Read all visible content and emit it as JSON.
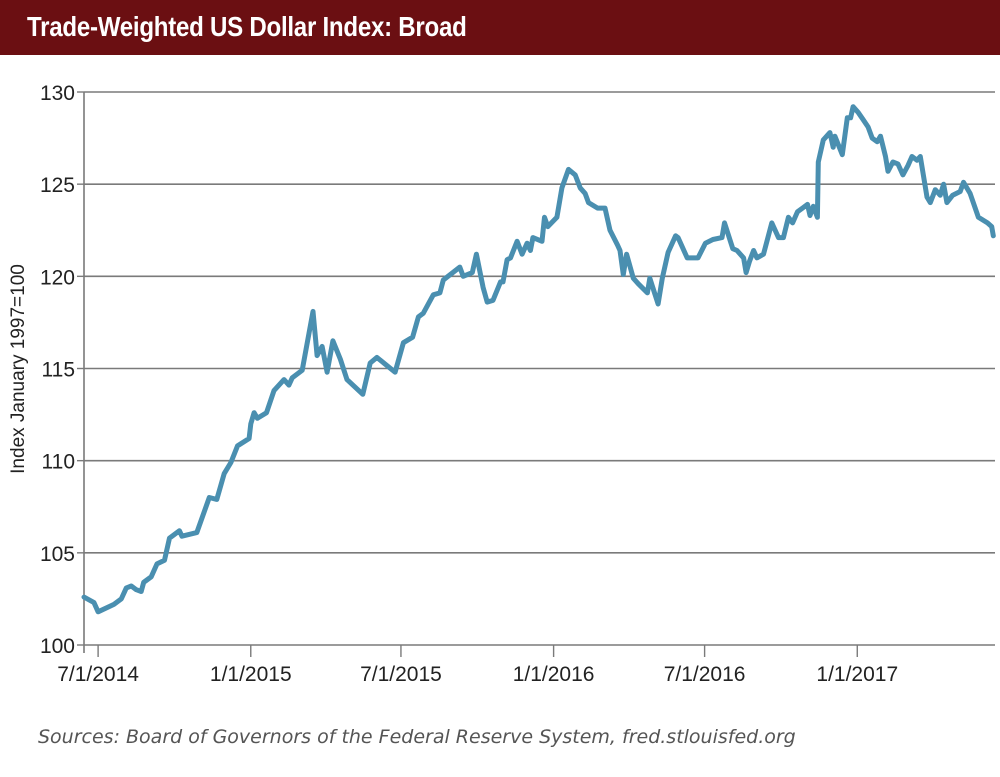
{
  "chart_data": {
    "type": "line",
    "title": "Trade-Weighted US Dollar Index: Broad",
    "xlabel": "",
    "ylabel": "Index January 1997=100",
    "source": "Sources: Board of Governors of the Federal Reserve System, fred.stlouisfed.org",
    "ylim": [
      100,
      130
    ],
    "yticks": [
      100,
      105,
      110,
      115,
      120,
      125,
      130
    ],
    "ytick_labels": [
      "100",
      "105",
      "110",
      "115",
      "120",
      "125",
      "130"
    ],
    "xlim": [
      "2014-06-14",
      "2017-06-16"
    ],
    "xticks": [
      "2014-07-01",
      "2015-01-01",
      "2015-07-01",
      "2016-01-01",
      "2016-07-01",
      "2017-01-01"
    ],
    "xtick_labels": [
      "7/1/2014",
      "1/1/2015",
      "7/1/2015",
      "1/1/2016",
      "7/1/2016",
      "1/1/2017"
    ],
    "grid": "horizontal",
    "legend": "none",
    "colors": {
      "line": "#4a8fb0",
      "title_bar": "#6b0f12",
      "grid": "#7a7a7a"
    },
    "series": [
      {
        "points": [
          [
            "2014-06-14",
            102.6
          ],
          [
            "2014-06-26",
            102.3
          ],
          [
            "2014-07-01",
            101.8
          ],
          [
            "2014-07-20",
            102.2
          ],
          [
            "2014-07-29",
            102.5
          ],
          [
            "2014-08-04",
            103.1
          ],
          [
            "2014-08-10",
            103.2
          ],
          [
            "2014-08-16",
            103.0
          ],
          [
            "2014-08-22",
            102.9
          ],
          [
            "2014-08-25",
            103.4
          ],
          [
            "2014-09-03",
            103.7
          ],
          [
            "2014-09-10",
            104.4
          ],
          [
            "2014-09-19",
            104.6
          ],
          [
            "2014-09-25",
            105.8
          ],
          [
            "2014-10-07",
            106.2
          ],
          [
            "2014-10-10",
            105.9
          ],
          [
            "2014-10-28",
            106.1
          ],
          [
            "2014-11-12",
            108.0
          ],
          [
            "2014-11-21",
            107.9
          ],
          [
            "2014-11-30",
            109.3
          ],
          [
            "2014-12-08",
            109.9
          ],
          [
            "2014-12-16",
            110.8
          ],
          [
            "2014-12-30",
            111.2
          ],
          [
            "2015-01-01",
            112.0
          ],
          [
            "2015-01-05",
            112.6
          ],
          [
            "2015-01-09",
            112.3
          ],
          [
            "2015-01-20",
            112.6
          ],
          [
            "2015-01-29",
            113.8
          ],
          [
            "2015-02-10",
            114.4
          ],
          [
            "2015-02-16",
            114.1
          ],
          [
            "2015-02-20",
            114.5
          ],
          [
            "2015-03-04",
            114.9
          ],
          [
            "2015-03-17",
            118.1
          ],
          [
            "2015-03-22",
            115.7
          ],
          [
            "2015-03-28",
            116.2
          ],
          [
            "2015-04-03",
            114.8
          ],
          [
            "2015-04-10",
            116.5
          ],
          [
            "2015-04-19",
            115.5
          ],
          [
            "2015-04-27",
            114.4
          ],
          [
            "2015-05-16",
            113.6
          ],
          [
            "2015-05-25",
            115.3
          ],
          [
            "2015-06-02",
            115.6
          ],
          [
            "2015-06-24",
            114.8
          ],
          [
            "2015-07-04",
            116.4
          ],
          [
            "2015-07-15",
            116.7
          ],
          [
            "2015-07-22",
            117.8
          ],
          [
            "2015-07-28",
            118.0
          ],
          [
            "2015-08-09",
            119.0
          ],
          [
            "2015-08-17",
            119.1
          ],
          [
            "2015-08-21",
            119.8
          ],
          [
            "2015-09-10",
            120.5
          ],
          [
            "2015-09-14",
            120.0
          ],
          [
            "2015-09-25",
            120.2
          ],
          [
            "2015-09-30",
            121.2
          ],
          [
            "2015-10-08",
            119.4
          ],
          [
            "2015-10-13",
            118.6
          ],
          [
            "2015-10-20",
            118.7
          ],
          [
            "2015-10-29",
            119.7
          ],
          [
            "2015-11-01",
            119.7
          ],
          [
            "2015-11-06",
            120.9
          ],
          [
            "2015-11-10",
            121.0
          ],
          [
            "2015-11-18",
            121.9
          ],
          [
            "2015-11-24",
            121.2
          ],
          [
            "2015-11-30",
            121.8
          ],
          [
            "2015-12-04",
            121.4
          ],
          [
            "2015-12-07",
            122.1
          ],
          [
            "2015-12-18",
            121.9
          ],
          [
            "2015-12-21",
            123.2
          ],
          [
            "2015-12-25",
            122.7
          ],
          [
            "2016-01-05",
            123.2
          ],
          [
            "2016-01-11",
            124.8
          ],
          [
            "2016-01-19",
            125.8
          ],
          [
            "2016-01-27",
            125.5
          ],
          [
            "2016-02-02",
            124.8
          ],
          [
            "2016-02-08",
            124.5
          ],
          [
            "2016-02-12",
            124.0
          ],
          [
            "2016-02-23",
            123.7
          ],
          [
            "2016-03-03",
            123.7
          ],
          [
            "2016-03-09",
            122.5
          ],
          [
            "2016-03-18",
            121.7
          ],
          [
            "2016-03-21",
            121.4
          ],
          [
            "2016-03-25",
            120.1
          ],
          [
            "2016-03-29",
            121.2
          ],
          [
            "2016-04-06",
            119.9
          ],
          [
            "2016-04-12",
            119.6
          ],
          [
            "2016-04-23",
            119.1
          ],
          [
            "2016-04-26",
            119.9
          ],
          [
            "2016-05-06",
            118.5
          ],
          [
            "2016-05-11",
            119.9
          ],
          [
            "2016-05-18",
            121.3
          ],
          [
            "2016-05-27",
            122.2
          ],
          [
            "2016-05-30",
            122.1
          ],
          [
            "2016-06-10",
            121.0
          ],
          [
            "2016-06-14",
            121.0
          ],
          [
            "2016-06-23",
            121.0
          ],
          [
            "2016-07-02",
            121.8
          ],
          [
            "2016-07-11",
            122.0
          ],
          [
            "2016-07-22",
            122.1
          ],
          [
            "2016-07-25",
            122.9
          ],
          [
            "2016-08-04",
            121.5
          ],
          [
            "2016-08-09",
            121.4
          ],
          [
            "2016-08-17",
            121.0
          ],
          [
            "2016-08-20",
            120.2
          ],
          [
            "2016-08-24",
            120.8
          ],
          [
            "2016-08-29",
            121.4
          ],
          [
            "2016-09-02",
            121.0
          ],
          [
            "2016-09-10",
            121.2
          ],
          [
            "2016-09-20",
            122.9
          ],
          [
            "2016-09-28",
            122.1
          ],
          [
            "2016-10-04",
            122.1
          ],
          [
            "2016-10-10",
            123.2
          ],
          [
            "2016-10-15",
            122.9
          ],
          [
            "2016-10-21",
            123.5
          ],
          [
            "2016-10-27",
            123.7
          ],
          [
            "2016-11-02",
            123.9
          ],
          [
            "2016-11-05",
            123.3
          ],
          [
            "2016-11-09",
            123.8
          ],
          [
            "2016-11-14",
            123.2
          ],
          [
            "2016-11-15",
            126.2
          ],
          [
            "2016-11-21",
            127.4
          ],
          [
            "2016-11-29",
            127.8
          ],
          [
            "2016-12-03",
            127.0
          ],
          [
            "2016-12-05",
            127.6
          ],
          [
            "2016-12-14",
            126.6
          ],
          [
            "2016-12-20",
            128.6
          ],
          [
            "2016-12-24",
            128.6
          ],
          [
            "2016-12-27",
            129.2
          ],
          [
            "2017-01-02",
            128.9
          ],
          [
            "2017-01-08",
            128.5
          ],
          [
            "2017-01-14",
            128.1
          ],
          [
            "2017-01-19",
            127.5
          ],
          [
            "2017-01-25",
            127.3
          ],
          [
            "2017-01-29",
            127.6
          ],
          [
            "2017-02-04",
            126.5
          ],
          [
            "2017-02-07",
            125.7
          ],
          [
            "2017-02-13",
            126.2
          ],
          [
            "2017-02-19",
            126.1
          ],
          [
            "2017-02-25",
            125.5
          ],
          [
            "2017-03-03",
            126.0
          ],
          [
            "2017-03-08",
            126.5
          ],
          [
            "2017-03-14",
            126.3
          ],
          [
            "2017-03-18",
            126.5
          ],
          [
            "2017-03-26",
            124.3
          ],
          [
            "2017-03-30",
            124.0
          ],
          [
            "2017-04-05",
            124.7
          ],
          [
            "2017-04-11",
            124.4
          ],
          [
            "2017-04-15",
            125.0
          ],
          [
            "2017-04-19",
            124.0
          ],
          [
            "2017-04-26",
            124.4
          ],
          [
            "2017-05-05",
            124.6
          ],
          [
            "2017-05-09",
            125.1
          ],
          [
            "2017-05-17",
            124.5
          ],
          [
            "2017-05-27",
            123.2
          ],
          [
            "2017-06-07",
            122.9
          ],
          [
            "2017-06-12",
            122.7
          ],
          [
            "2017-06-14",
            122.2
          ]
        ]
      }
    ]
  }
}
